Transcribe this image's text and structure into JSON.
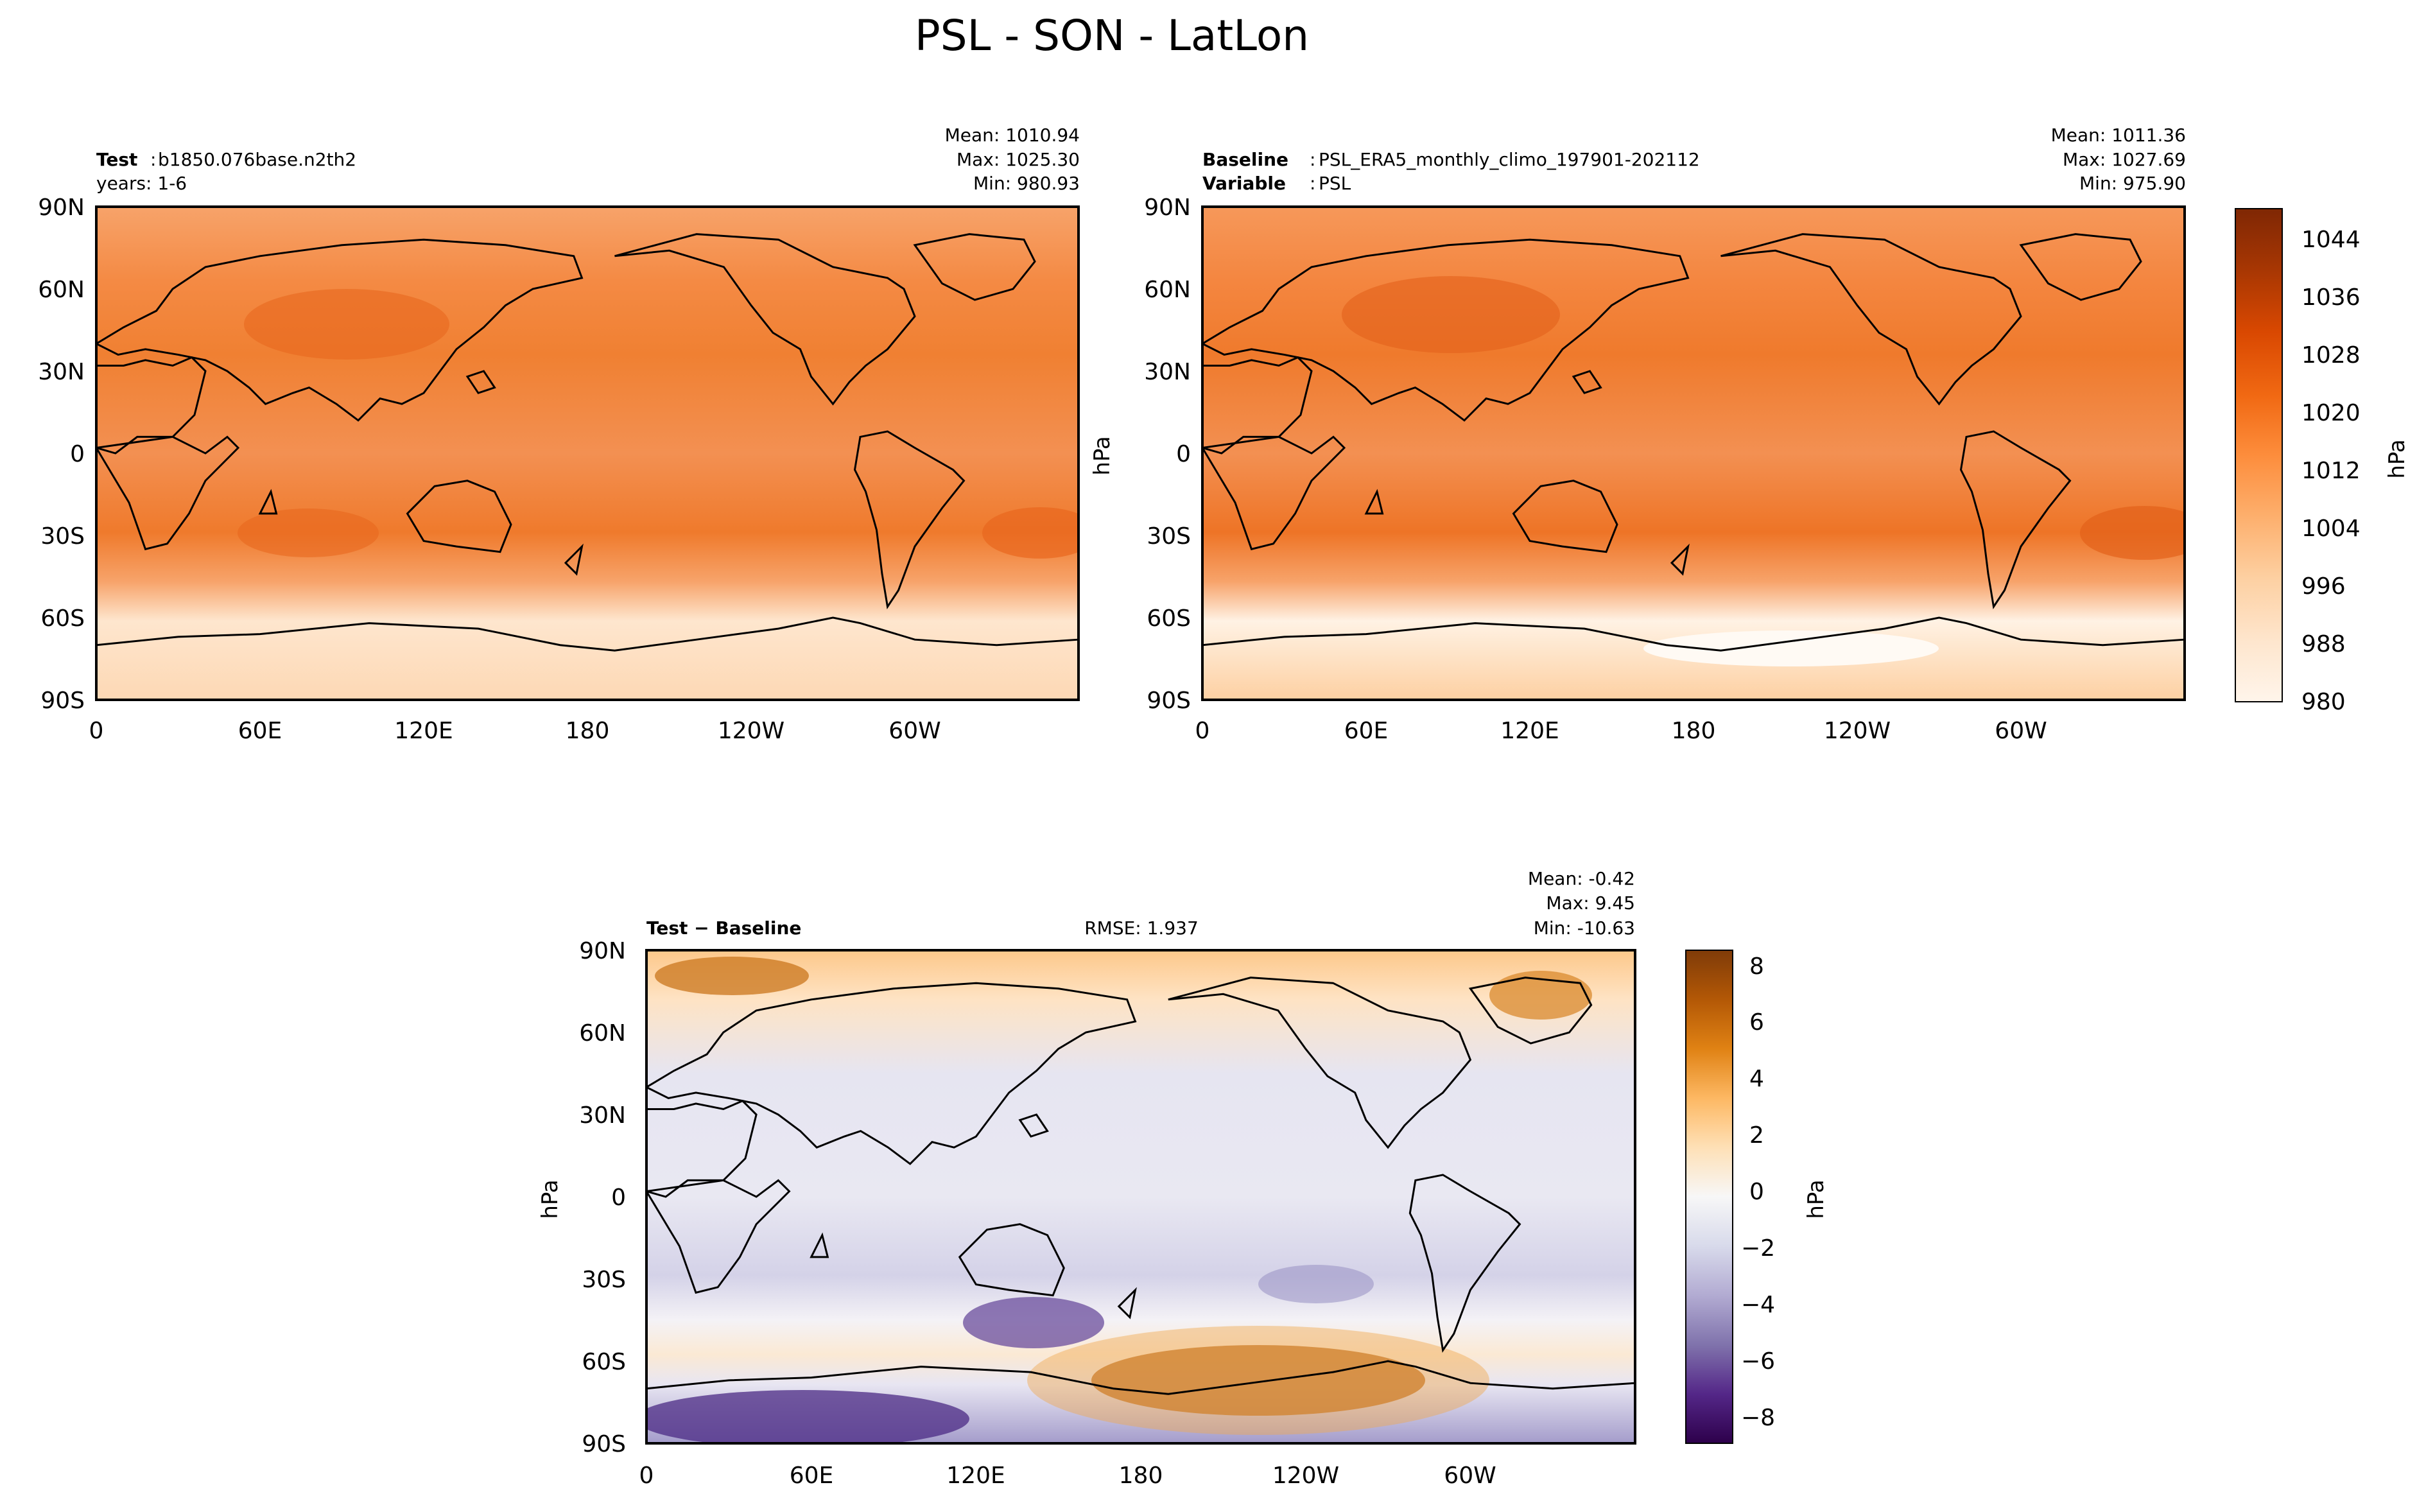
{
  "figure": {
    "title": "PSL - SON - LatLon"
  },
  "panels": {
    "test": {
      "left_label": "Test",
      "left_value": "b1850.076base.n2th2",
      "left_line2": "years: 1-6",
      "mean": "Mean: 1010.94",
      "max": "Max: 1025.30",
      "min": "Min: 980.93"
    },
    "baseline": {
      "label1": "Baseline",
      "value1": "PSL_ERA5_monthly_climo_197901-202112",
      "label2": "Variable",
      "value2": "PSL",
      "mean": "Mean: 1011.36",
      "max": "Max: 1027.69",
      "min": "Min: 975.90",
      "ylabel": "hPa"
    },
    "diff": {
      "left_label": "Test − Baseline",
      "rmse": "RMSE: 1.937",
      "mean": "Mean: -0.42",
      "max": "Max:  9.45",
      "min": "Min: -10.63",
      "ylabel": "hPa"
    }
  },
  "colorbars": {
    "top": {
      "label": "hPa",
      "ticks": [
        "1044",
        "1036",
        "1028",
        "1020",
        "1012",
        "1004",
        "996",
        "988",
        "980"
      ]
    },
    "diff": {
      "label": "hPa",
      "ticks": [
        "8",
        "6",
        "4",
        "2",
        "0",
        "−2",
        "−4",
        "−6",
        "−8"
      ]
    }
  },
  "chart_data": [
    {
      "type": "heatmap",
      "title": "Test",
      "variable": "PSL",
      "units": "hPa",
      "season": "SON",
      "x_ticks": [
        "0",
        "60E",
        "120E",
        "180",
        "120W",
        "60W"
      ],
      "y_ticks": [
        "90N",
        "60N",
        "30N",
        "0",
        "30S",
        "60S",
        "90S"
      ],
      "xlim": [
        0,
        360
      ],
      "ylim": [
        -90,
        90
      ],
      "colormap": "Oranges",
      "clim": [
        980,
        1048
      ],
      "stats": {
        "mean": 1010.94,
        "max": 1025.3,
        "min": 980.93
      }
    },
    {
      "type": "heatmap",
      "title": "Baseline",
      "variable": "PSL",
      "units": "hPa",
      "season": "SON",
      "x_ticks": [
        "0",
        "60E",
        "120E",
        "180",
        "120W",
        "60W"
      ],
      "y_ticks": [
        "90N",
        "60N",
        "30N",
        "0",
        "30S",
        "60S",
        "90S"
      ],
      "xlim": [
        0,
        360
      ],
      "ylim": [
        -90,
        90
      ],
      "colormap": "Oranges",
      "clim": [
        980,
        1048
      ],
      "stats": {
        "mean": 1011.36,
        "max": 1027.69,
        "min": 975.9
      }
    },
    {
      "type": "heatmap",
      "title": "Test − Baseline",
      "variable": "PSL",
      "units": "hPa",
      "season": "SON",
      "x_ticks": [
        "0",
        "60E",
        "120E",
        "180",
        "120W",
        "60W"
      ],
      "y_ticks": [
        "90N",
        "60N",
        "30N",
        "0",
        "30S",
        "60S",
        "90S"
      ],
      "xlim": [
        0,
        360
      ],
      "ylim": [
        -90,
        90
      ],
      "colormap": "PuOr_r",
      "clim": [
        -9,
        9
      ],
      "stats": {
        "mean": -0.42,
        "max": 9.45,
        "min": -10.63,
        "rmse": 1.937
      }
    }
  ],
  "colors": {
    "oranges": [
      "#fff5eb",
      "#fee6ce",
      "#fdd0a2",
      "#fdae6b",
      "#fd8d3c",
      "#f16913",
      "#d94801",
      "#a63603",
      "#7f2704"
    ],
    "puor": [
      "#2d004b",
      "#542788",
      "#8073ac",
      "#b2abd2",
      "#d8daeb",
      "#f7f7f7",
      "#fee0b6",
      "#fdb863",
      "#e08214",
      "#b35806",
      "#7f3b08"
    ]
  }
}
